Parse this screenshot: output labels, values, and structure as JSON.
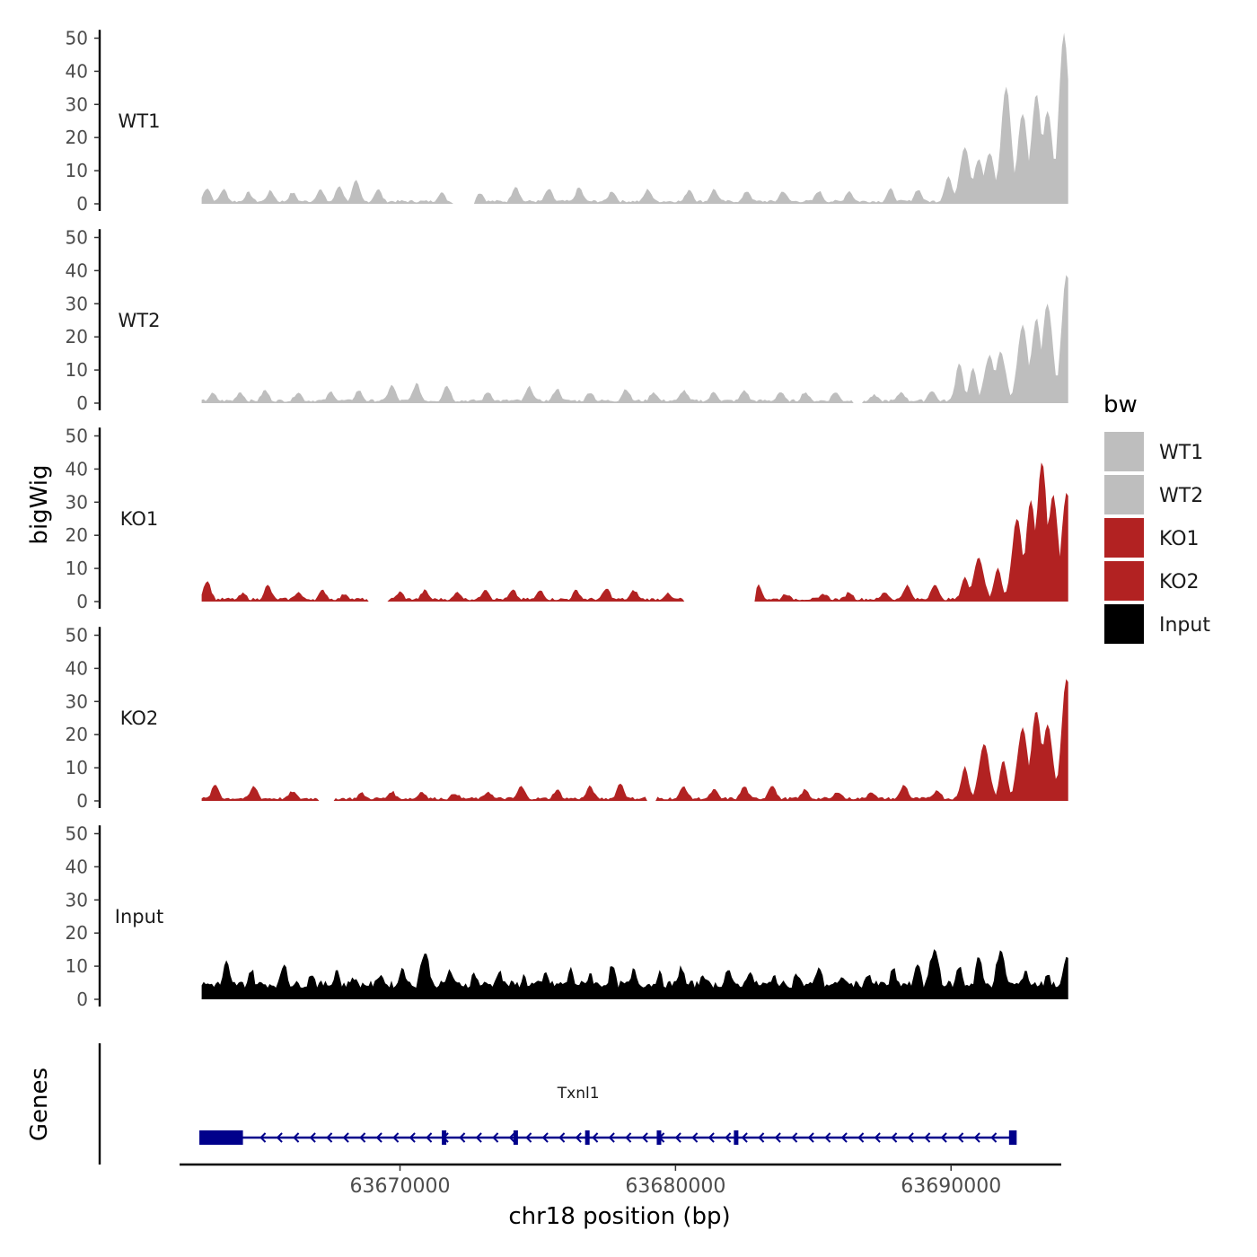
{
  "chart_data": {
    "type": "area",
    "title": "",
    "ylabel": "bigWig",
    "xlabel": "chr18 position (bp)",
    "genes_label": "Genes",
    "chromosome": "chr18",
    "xlim": [
      63662000,
      63694000
    ],
    "ylim": [
      0,
      52
    ],
    "yticks": [
      0,
      10,
      20,
      30,
      40,
      50
    ],
    "xticks": [
      63670000,
      63680000,
      63690000
    ],
    "x_start": 63662800,
    "x_end": 63694250,
    "legend": {
      "title": "bw",
      "position": "right",
      "entries": [
        {
          "label": "WT1",
          "color": "#bebebe"
        },
        {
          "label": "WT2",
          "color": "#bebebe"
        },
        {
          "label": "KO1",
          "color": "#b22222"
        },
        {
          "label": "KO2",
          "color": "#b22222"
        },
        {
          "label": "Input",
          "color": "#000000"
        }
      ]
    },
    "series": [
      {
        "name": "WT1",
        "color": "#bebebe",
        "peaks": [
          [
            63663000,
            4.5
          ],
          [
            63663600,
            4
          ],
          [
            63664500,
            3
          ],
          [
            63665300,
            3.5
          ],
          [
            63666100,
            3
          ],
          [
            63667100,
            4
          ],
          [
            63667800,
            5
          ],
          [
            63668400,
            6.5
          ],
          [
            63669200,
            4
          ],
          [
            63671500,
            3
          ],
          [
            63672900,
            3
          ],
          [
            63674200,
            5
          ],
          [
            63675400,
            4
          ],
          [
            63676500,
            4.5
          ],
          [
            63677700,
            3.5
          ],
          [
            63679000,
            4
          ],
          [
            63680500,
            4
          ],
          [
            63681400,
            4
          ],
          [
            63682600,
            3.5
          ],
          [
            63683900,
            3.5
          ],
          [
            63685200,
            3.5
          ],
          [
            63686300,
            3.5
          ],
          [
            63687800,
            4
          ],
          [
            63688800,
            4
          ],
          [
            63689900,
            8
          ],
          [
            63690500,
            17
          ],
          [
            63691000,
            13
          ],
          [
            63691400,
            15
          ],
          [
            63692000,
            35
          ],
          [
            63692600,
            27
          ],
          [
            63693100,
            33
          ],
          [
            63693500,
            28
          ],
          [
            63694100,
            51
          ]
        ],
        "gaps": [
          [
            63671900,
            63672700
          ]
        ]
      },
      {
        "name": "WT2",
        "color": "#bebebe",
        "peaks": [
          [
            63663200,
            2.5
          ],
          [
            63664200,
            3
          ],
          [
            63665100,
            3.5
          ],
          [
            63666300,
            3
          ],
          [
            63667500,
            3
          ],
          [
            63668500,
            3.5
          ],
          [
            63669700,
            5
          ],
          [
            63670600,
            5.5
          ],
          [
            63671700,
            5
          ],
          [
            63673200,
            3
          ],
          [
            63674700,
            4.5
          ],
          [
            63675700,
            4
          ],
          [
            63676900,
            3
          ],
          [
            63678200,
            4
          ],
          [
            63679200,
            3
          ],
          [
            63680300,
            3.5
          ],
          [
            63681400,
            3
          ],
          [
            63682500,
            3.5
          ],
          [
            63683800,
            3
          ],
          [
            63684700,
            3
          ],
          [
            63685800,
            3
          ],
          [
            63687200,
            2
          ],
          [
            63688200,
            3
          ],
          [
            63689300,
            3.5
          ],
          [
            63690300,
            12
          ],
          [
            63690800,
            10
          ],
          [
            63691400,
            14
          ],
          [
            63691800,
            15
          ],
          [
            63692600,
            23
          ],
          [
            63693100,
            25
          ],
          [
            63693500,
            30
          ],
          [
            63694200,
            39
          ]
        ],
        "gaps": [
          [
            63686400,
            63686800
          ]
        ]
      },
      {
        "name": "KO1",
        "color": "#b22222",
        "peaks": [
          [
            63663000,
            6
          ],
          [
            63664300,
            2
          ],
          [
            63665200,
            4.5
          ],
          [
            63666300,
            2.5
          ],
          [
            63667200,
            3
          ],
          [
            63668000,
            2
          ],
          [
            63670000,
            2.5
          ],
          [
            63670900,
            3
          ],
          [
            63672100,
            2.5
          ],
          [
            63673100,
            3.5
          ],
          [
            63674100,
            3
          ],
          [
            63675100,
            3
          ],
          [
            63676400,
            3
          ],
          [
            63677500,
            3.5
          ],
          [
            63678500,
            3
          ],
          [
            63679700,
            2
          ],
          [
            63683000,
            4.5
          ],
          [
            63684000,
            2
          ],
          [
            63685400,
            2
          ],
          [
            63686300,
            2.5
          ],
          [
            63687600,
            2.5
          ],
          [
            63688400,
            4.5
          ],
          [
            63689400,
            5
          ],
          [
            63690500,
            7
          ],
          [
            63691000,
            13
          ],
          [
            63691700,
            10
          ],
          [
            63692400,
            25
          ],
          [
            63692900,
            30
          ],
          [
            63693300,
            42
          ],
          [
            63693700,
            32
          ],
          [
            63694200,
            33
          ]
        ],
        "gaps": [
          [
            63668800,
            63669600
          ],
          [
            63680300,
            63682900
          ]
        ]
      },
      {
        "name": "KO2",
        "color": "#b22222",
        "peaks": [
          [
            63663300,
            4.5
          ],
          [
            63664700,
            4
          ],
          [
            63666100,
            2.5
          ],
          [
            63667300,
            2
          ],
          [
            63668600,
            2
          ],
          [
            63669700,
            2.5
          ],
          [
            63670800,
            2.5
          ],
          [
            63672000,
            2
          ],
          [
            63673200,
            2.5
          ],
          [
            63674400,
            4
          ],
          [
            63675700,
            3
          ],
          [
            63676900,
            4
          ],
          [
            63678000,
            5
          ],
          [
            63679100,
            3
          ],
          [
            63680300,
            4
          ],
          [
            63681400,
            3
          ],
          [
            63682500,
            4
          ],
          [
            63683500,
            4.5
          ],
          [
            63684700,
            3
          ],
          [
            63685900,
            2.5
          ],
          [
            63687100,
            2.5
          ],
          [
            63688300,
            4.5
          ],
          [
            63689500,
            3
          ],
          [
            63690500,
            10
          ],
          [
            63691200,
            17
          ],
          [
            63691900,
            12
          ],
          [
            63692600,
            22
          ],
          [
            63693100,
            27
          ],
          [
            63693500,
            23
          ],
          [
            63694200,
            37
          ]
        ],
        "gaps": [
          [
            63667000,
            63667600
          ],
          [
            63678900,
            63679300
          ]
        ]
      },
      {
        "name": "Input",
        "color": "#000000",
        "peaks": [
          [
            63663700,
            10
          ],
          [
            63664600,
            8
          ],
          [
            63665800,
            10
          ],
          [
            63666800,
            7
          ],
          [
            63667700,
            8
          ],
          [
            63668300,
            6
          ],
          [
            63669300,
            7
          ],
          [
            63670100,
            9
          ],
          [
            63670900,
            13
          ],
          [
            63671800,
            8
          ],
          [
            63672700,
            7
          ],
          [
            63673600,
            8
          ],
          [
            63674500,
            6
          ],
          [
            63675300,
            7
          ],
          [
            63676200,
            8
          ],
          [
            63676900,
            7
          ],
          [
            63677700,
            9
          ],
          [
            63678500,
            8
          ],
          [
            63679400,
            7
          ],
          [
            63680200,
            9
          ],
          [
            63681000,
            7
          ],
          [
            63681900,
            8
          ],
          [
            63682700,
            8
          ],
          [
            63683600,
            6
          ],
          [
            63684400,
            7
          ],
          [
            63685200,
            9
          ],
          [
            63686100,
            6
          ],
          [
            63687000,
            7
          ],
          [
            63687900,
            8
          ],
          [
            63688800,
            10
          ],
          [
            63689400,
            14
          ],
          [
            63690300,
            9
          ],
          [
            63691000,
            12
          ],
          [
            63691800,
            13
          ],
          [
            63692700,
            8
          ],
          [
            63693500,
            7
          ],
          [
            63694200,
            12
          ]
        ],
        "gaps": []
      }
    ],
    "genes": [
      {
        "name": "Txnl1",
        "start": 63662800,
        "end": 63692300,
        "strand": "-",
        "thick_start_region": [
          63662800,
          63664300
        ],
        "exons": [
          63662800,
          63671600,
          63674200,
          63676800,
          63679400,
          63682200,
          63692300
        ]
      }
    ]
  }
}
